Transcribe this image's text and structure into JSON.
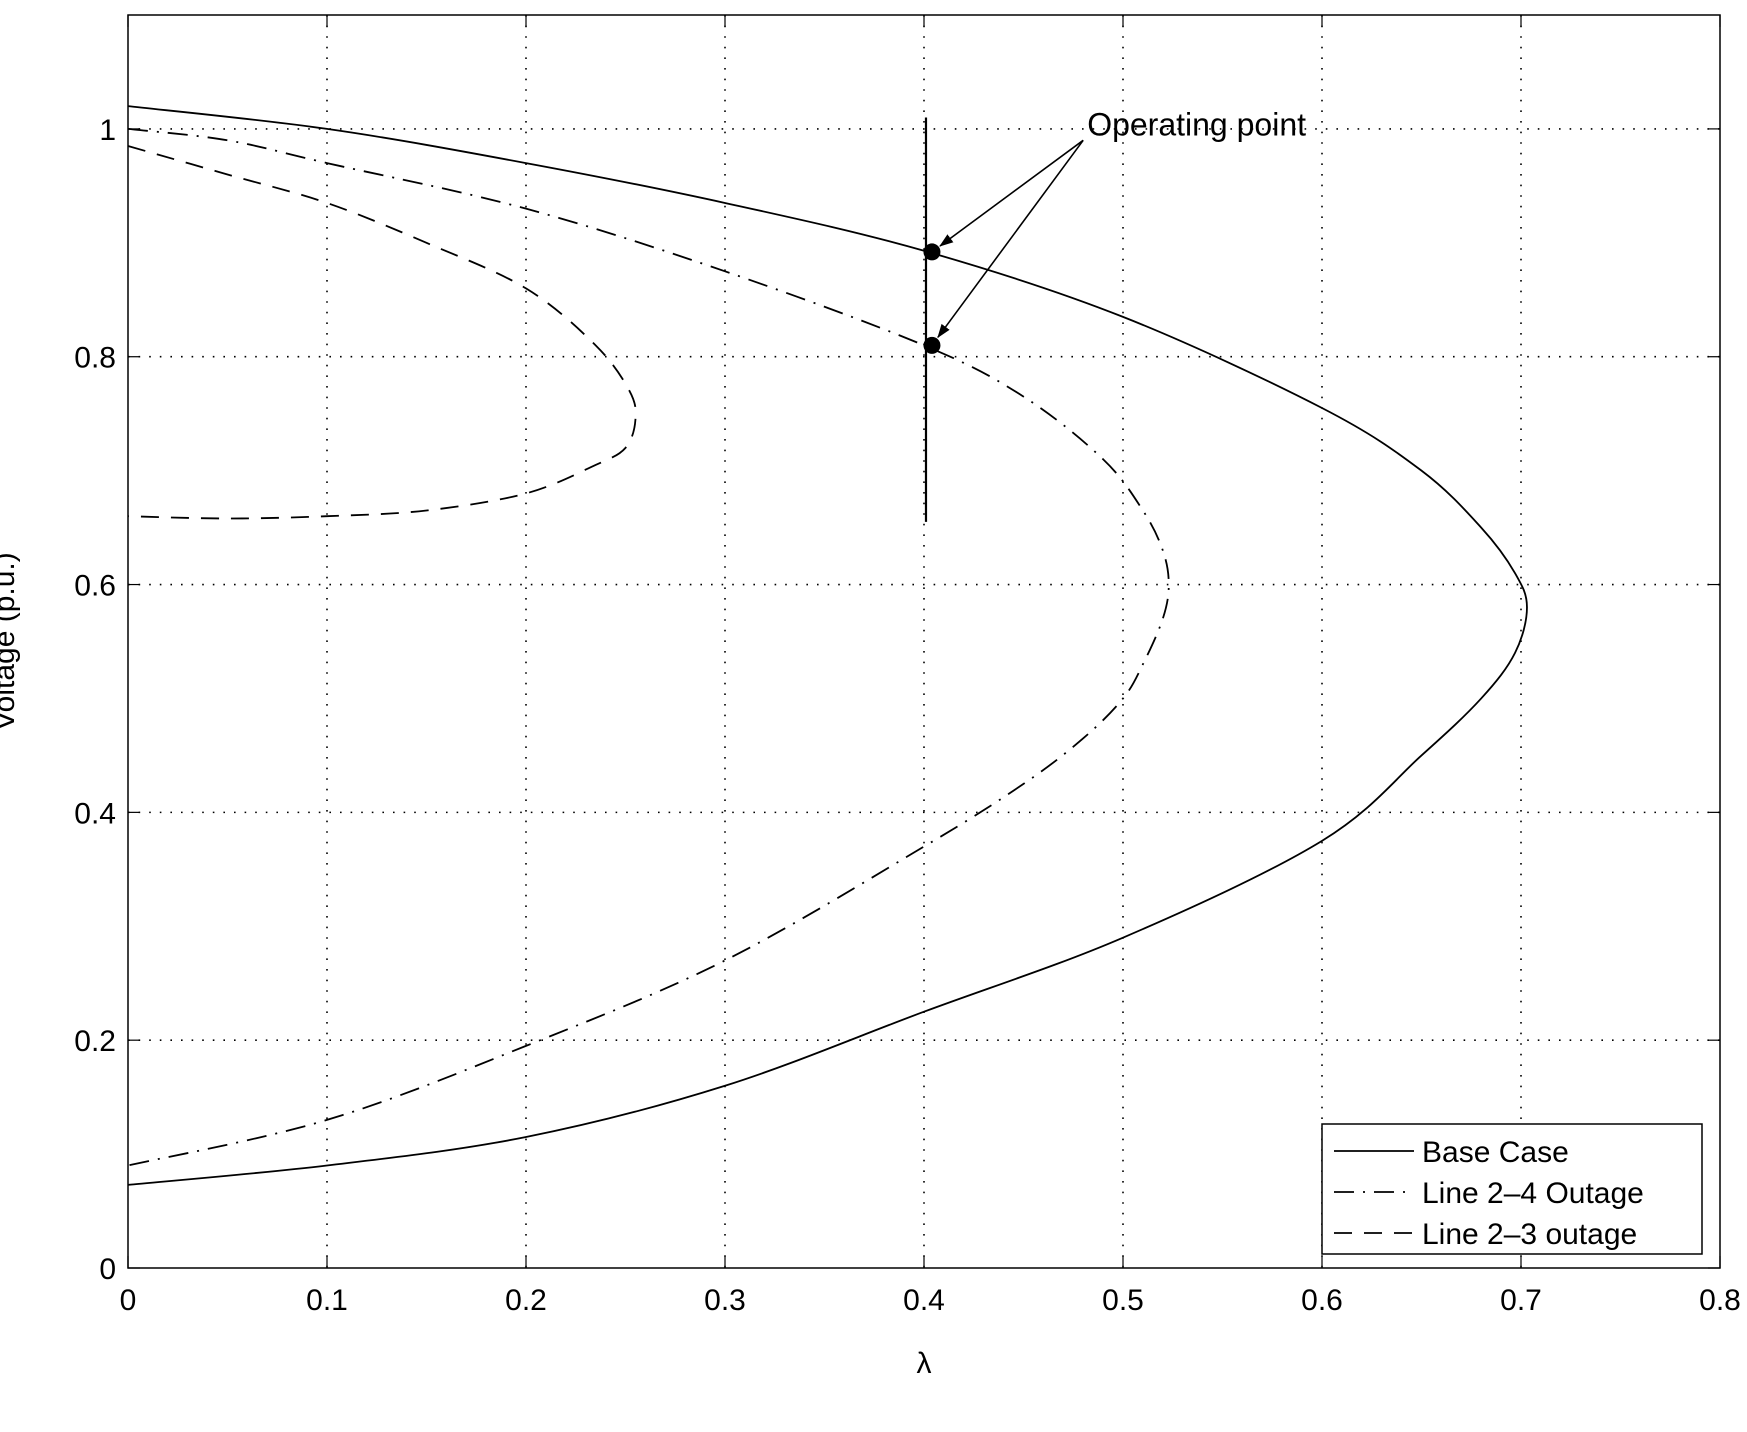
{
  "chart_data": {
    "type": "line",
    "xlabel": "λ",
    "ylabel": "Voltage (p.u.)",
    "xlim": [
      0,
      0.8
    ],
    "ylim": [
      0,
      1.1
    ],
    "xticks": [
      0,
      0.1,
      0.2,
      0.3,
      0.4,
      0.5,
      0.6,
      0.7,
      0.8
    ],
    "xtick_labels": [
      "0",
      "0.1",
      "0.2",
      "0.3",
      "0.4",
      "0.5",
      "0.6",
      "0.7",
      "0.8"
    ],
    "yticks": [
      0,
      0.2,
      0.4,
      0.6,
      0.8,
      1.0
    ],
    "ytick_labels": [
      "0",
      "0.2",
      "0.4",
      "0.6",
      "0.8",
      "1"
    ],
    "grid": true,
    "legend_position": "bottom-right",
    "series": [
      {
        "name": "Base Case",
        "style": "solid",
        "points": [
          [
            0.0,
            1.02
          ],
          [
            0.1,
            1.0
          ],
          [
            0.2,
            0.97
          ],
          [
            0.3,
            0.935
          ],
          [
            0.4,
            0.893
          ],
          [
            0.5,
            0.835
          ],
          [
            0.6,
            0.755
          ],
          [
            0.65,
            0.7
          ],
          [
            0.68,
            0.65
          ],
          [
            0.697,
            0.61
          ],
          [
            0.703,
            0.58
          ],
          [
            0.697,
            0.54
          ],
          [
            0.68,
            0.5
          ],
          [
            0.65,
            0.45
          ],
          [
            0.6,
            0.375
          ],
          [
            0.5,
            0.29
          ],
          [
            0.4,
            0.225
          ],
          [
            0.3,
            0.16
          ],
          [
            0.2,
            0.115
          ],
          [
            0.1,
            0.09
          ],
          [
            0.0,
            0.073
          ]
        ]
      },
      {
        "name": "Line 2–4 Outage",
        "style": "dashdot",
        "points": [
          [
            0.0,
            1.0
          ],
          [
            0.05,
            0.99
          ],
          [
            0.1,
            0.97
          ],
          [
            0.2,
            0.93
          ],
          [
            0.3,
            0.875
          ],
          [
            0.4,
            0.81
          ],
          [
            0.45,
            0.765
          ],
          [
            0.49,
            0.71
          ],
          [
            0.51,
            0.665
          ],
          [
            0.52,
            0.63
          ],
          [
            0.523,
            0.6
          ],
          [
            0.52,
            0.57
          ],
          [
            0.51,
            0.53
          ],
          [
            0.5,
            0.5
          ],
          [
            0.48,
            0.465
          ],
          [
            0.45,
            0.425
          ],
          [
            0.4,
            0.37
          ],
          [
            0.3,
            0.27
          ],
          [
            0.2,
            0.195
          ],
          [
            0.1,
            0.13
          ],
          [
            0.0,
            0.09
          ]
        ]
      },
      {
        "name": "Line 2–3 outage",
        "style": "dashed",
        "points": [
          [
            0.0,
            0.985
          ],
          [
            0.05,
            0.96
          ],
          [
            0.1,
            0.935
          ],
          [
            0.15,
            0.9
          ],
          [
            0.2,
            0.86
          ],
          [
            0.235,
            0.81
          ],
          [
            0.252,
            0.77
          ],
          [
            0.255,
            0.745
          ],
          [
            0.25,
            0.72
          ],
          [
            0.235,
            0.705
          ],
          [
            0.2,
            0.68
          ],
          [
            0.15,
            0.665
          ],
          [
            0.1,
            0.66
          ],
          [
            0.05,
            0.658
          ],
          [
            0.0,
            0.66
          ]
        ]
      }
    ],
    "vertical_line": {
      "x": 0.401,
      "y_from": 0.655,
      "y_to": 1.01
    },
    "operating_points": [
      [
        0.404,
        0.892
      ],
      [
        0.404,
        0.81
      ]
    ],
    "annotation": {
      "text": "Operating point",
      "x": 0.48,
      "y": 0.99
    }
  }
}
